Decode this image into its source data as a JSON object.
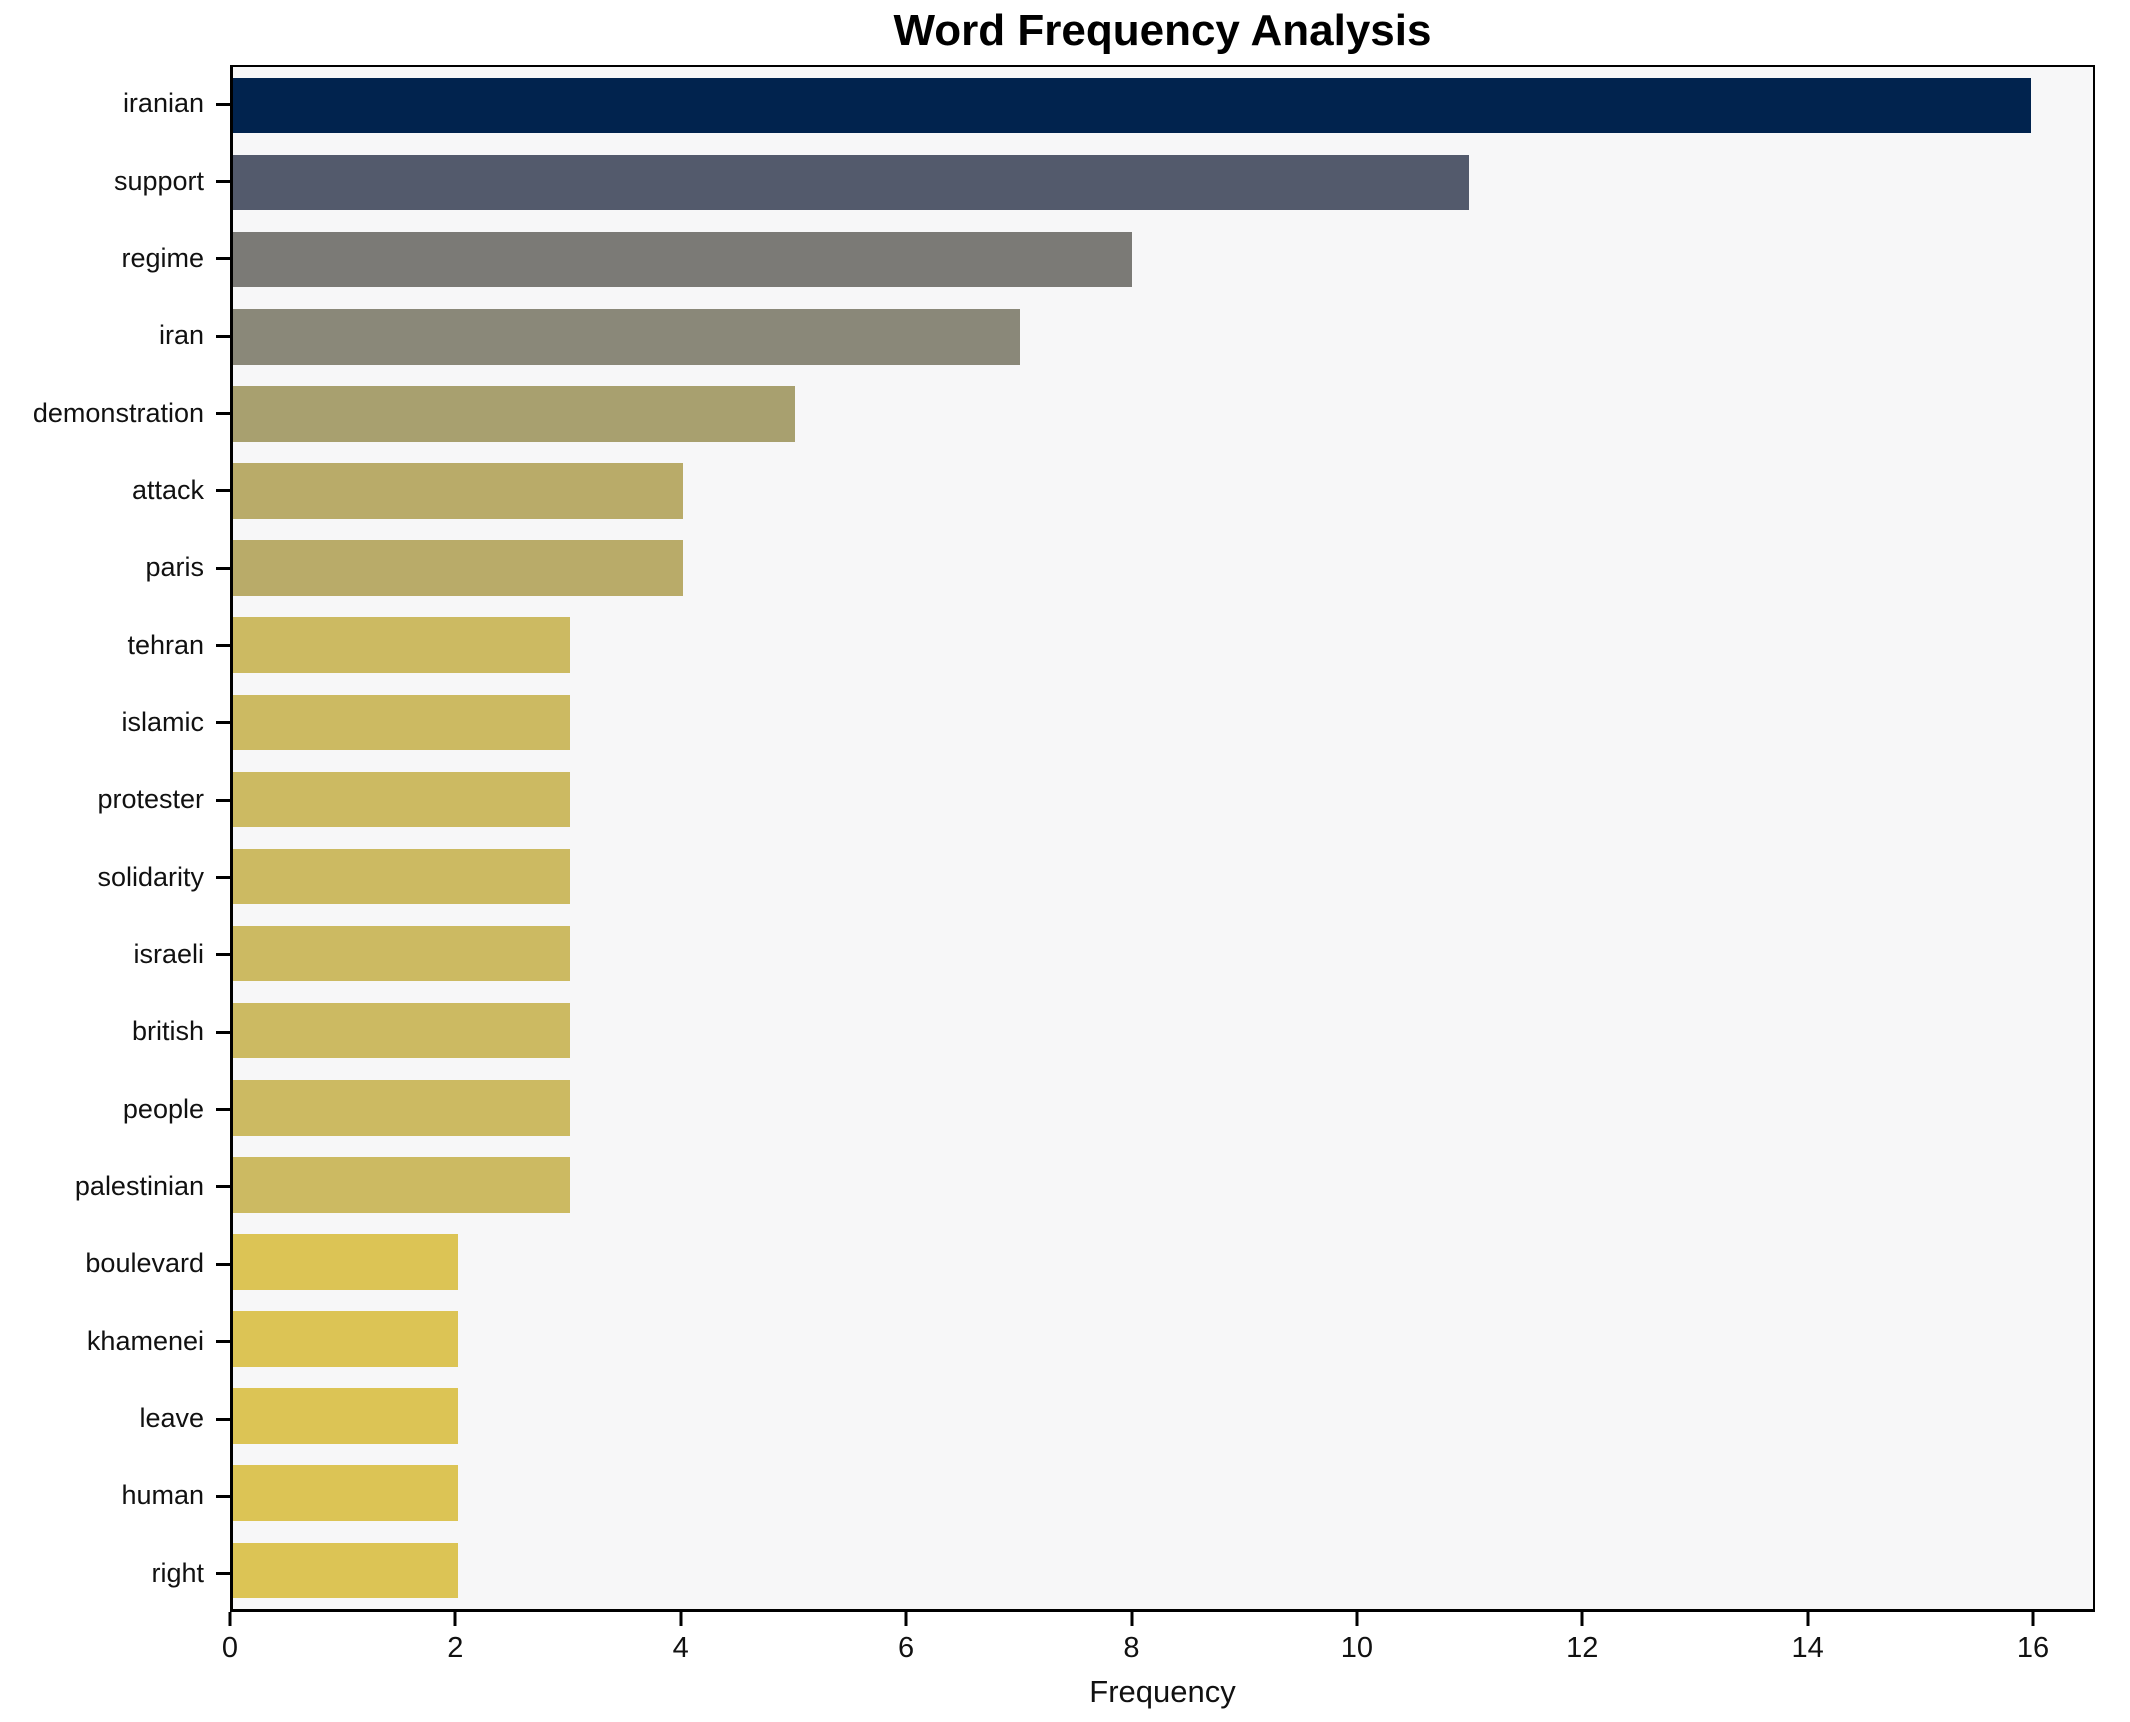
{
  "figure": {
    "background": "#ffffff",
    "plot_background": "#f7f7f8",
    "spine_color": "#000000",
    "text_color": "#111111"
  },
  "chart_data": {
    "type": "bar",
    "orientation": "horizontal",
    "title": "Word Frequency Analysis",
    "xlabel": "Frequency",
    "ylabel": "",
    "grid": false,
    "legend": null,
    "xlim": [
      0,
      16.55
    ],
    "xticks": [
      0,
      2,
      4,
      6,
      8,
      10,
      12,
      14,
      16
    ],
    "categories": [
      "iranian",
      "support",
      "regime",
      "iran",
      "demonstration",
      "attack",
      "paris",
      "tehran",
      "islamic",
      "protester",
      "solidarity",
      "israeli",
      "british",
      "people",
      "palestinian",
      "boulevard",
      "khamenei",
      "leave",
      "human",
      "right"
    ],
    "values": [
      16,
      11,
      8,
      7,
      5,
      4,
      4,
      3,
      3,
      3,
      3,
      3,
      3,
      3,
      3,
      2,
      2,
      2,
      2,
      2
    ],
    "bar_colors": [
      "#01234e",
      "#535a6c",
      "#7b7a76",
      "#8a8879",
      "#a8a06f",
      "#b9ab69",
      "#b9ab69",
      "#ccba62",
      "#ccba62",
      "#ccba62",
      "#ccba62",
      "#ccba62",
      "#ccba62",
      "#ccba62",
      "#ccba62",
      "#dcc455",
      "#dcc455",
      "#dcc455",
      "#dcc455",
      "#dcc455"
    ],
    "colormap_note": "cividis-reversed, darker = higher frequency"
  }
}
